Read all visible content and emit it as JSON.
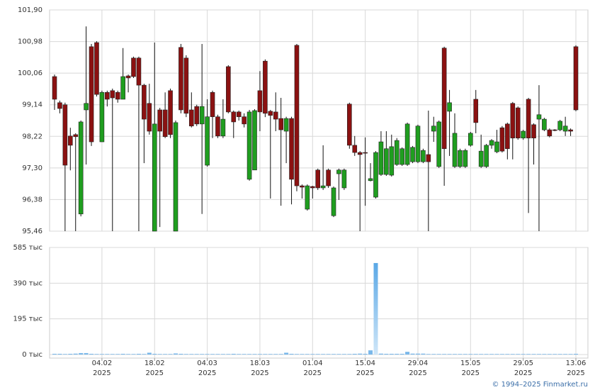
{
  "chart_data": {
    "type": "candlestick",
    "x": [
      "2025-01-22",
      "2025-01-23",
      "2025-01-24",
      "2025-01-27",
      "2025-01-28",
      "2025-01-29",
      "2025-01-30",
      "2025-01-31",
      "2025-02-03",
      "2025-02-04",
      "2025-02-05",
      "2025-02-06",
      "2025-02-07",
      "2025-02-10",
      "2025-02-11",
      "2025-02-12",
      "2025-02-13",
      "2025-02-14",
      "2025-02-17",
      "2025-02-18",
      "2025-02-19",
      "2025-02-20",
      "2025-02-21",
      "2025-02-24",
      "2025-02-25",
      "2025-02-26",
      "2025-02-27",
      "2025-02-28",
      "2025-03-03",
      "2025-03-04",
      "2025-03-05",
      "2025-03-06",
      "2025-03-07",
      "2025-03-10",
      "2025-03-11",
      "2025-03-12",
      "2025-03-13",
      "2025-03-14",
      "2025-03-17",
      "2025-03-18",
      "2025-03-19",
      "2025-03-20",
      "2025-03-21",
      "2025-03-24",
      "2025-03-25",
      "2025-03-26",
      "2025-03-27",
      "2025-03-28",
      "2025-03-31",
      "2025-04-01",
      "2025-04-02",
      "2025-04-03",
      "2025-04-04",
      "2025-04-07",
      "2025-04-08",
      "2025-04-09",
      "2025-04-10",
      "2025-04-11",
      "2025-04-14",
      "2025-04-15",
      "2025-04-16",
      "2025-04-17",
      "2025-04-18",
      "2025-04-21",
      "2025-04-22",
      "2025-04-23",
      "2025-04-24",
      "2025-04-25",
      "2025-04-28",
      "2025-04-29",
      "2025-04-30",
      "2025-05-05",
      "2025-05-06",
      "2025-05-07",
      "2025-05-08",
      "2025-05-09",
      "2025-05-12",
      "2025-05-13",
      "2025-05-14",
      "2025-05-15",
      "2025-05-16",
      "2025-05-19",
      "2025-05-20",
      "2025-05-21",
      "2025-05-22",
      "2025-05-23",
      "2025-05-26",
      "2025-05-27",
      "2025-05-28",
      "2025-05-29",
      "2025-05-30",
      "2025-06-02",
      "2025-06-03",
      "2025-06-04",
      "2025-06-05",
      "2025-06-06",
      "2025-06-09",
      "2025-06-10",
      "2025-06-11",
      "2025-06-13"
    ],
    "open": [
      99.96,
      99.2,
      99.14,
      98.23,
      98.27,
      95.96,
      98.99,
      100.83,
      100.95,
      98.06,
      99.5,
      99.55,
      99.5,
      99.3,
      99.98,
      100.5,
      100.5,
      99.71,
      99.18,
      95.46,
      98.99,
      98.99,
      99.55,
      95.46,
      100.81,
      100.5,
      98.99,
      99.09,
      98.58,
      97.38,
      99.5,
      98.79,
      98.23,
      100.25,
      98.93,
      98.93,
      98.79,
      96.97,
      97.24,
      99.55,
      100.41,
      98.95,
      98.93,
      98.74,
      98.37,
      98.74,
      100.87,
      96.78,
      96.1,
      96.76,
      97.24,
      96.72,
      97.24,
      95.91,
      97.13,
      96.72,
      99.16,
      97.96,
      97.75,
      97.75,
      96.93,
      96.45,
      97.11,
      97.11,
      97.09,
      97.4,
      97.4,
      97.4,
      97.48,
      97.48,
      97.48,
      97.69,
      98.37,
      97.34,
      100.79,
      98.95,
      97.34,
      97.34,
      97.34,
      97.96,
      99.3,
      97.34,
      97.34,
      97.96,
      97.77,
      98.47,
      98.58,
      99.18,
      99.05,
      98.17,
      99.3,
      98.56,
      98.72,
      98.41,
      98.41,
      98.41,
      98.41,
      98.37,
      98.41,
      100.83
    ],
    "high": [
      100.02,
      99.26,
      99.2,
      98.47,
      98.31,
      98.68,
      101.42,
      100.91,
      100.99,
      99.55,
      99.55,
      99.61,
      99.55,
      100.79,
      100.02,
      100.54,
      100.54,
      99.75,
      99.75,
      100.95,
      99.05,
      99.5,
      99.61,
      98.68,
      100.91,
      100.58,
      99.5,
      99.14,
      100.91,
      99.3,
      99.55,
      98.85,
      99.3,
      100.29,
      98.97,
      98.97,
      98.89,
      98.99,
      99.01,
      100.12,
      100.46,
      98.99,
      99.5,
      99.34,
      98.79,
      98.79,
      100.91,
      96.82,
      96.82,
      96.78,
      97.28,
      97.96,
      97.28,
      96.76,
      97.28,
      97.28,
      99.2,
      98.23,
      97.79,
      98.19,
      97.44,
      97.79,
      98.37,
      98.37,
      98.27,
      98.17,
      97.9,
      98.62,
      97.94,
      98.56,
      97.86,
      98.97,
      98.79,
      98.68,
      100.83,
      99.57,
      98.89,
      97.86,
      97.86,
      98.35,
      99.57,
      98.27,
      98.0,
      98.14,
      98.41,
      98.52,
      98.62,
      99.22,
      99.09,
      98.41,
      99.34,
      98.6,
      99.71,
      98.76,
      98.45,
      98.43,
      98.7,
      98.79,
      98.45,
      100.87
    ],
    "low": [
      98.99,
      98.89,
      95.46,
      97.23,
      95.46,
      95.89,
      97.4,
      97.94,
      99.38,
      98.06,
      99.09,
      95.46,
      99.2,
      99.3,
      99.5,
      99.92,
      95.46,
      97.44,
      98.27,
      95.46,
      95.58,
      98.17,
      98.17,
      95.46,
      98.89,
      98.78,
      98.48,
      98.52,
      95.96,
      97.34,
      98.17,
      98.17,
      98.17,
      98.89,
      98.17,
      98.68,
      98.48,
      96.93,
      97.24,
      98.37,
      98.78,
      96.41,
      98.37,
      96.2,
      97.44,
      96.24,
      96.62,
      96.41,
      96.06,
      96.41,
      96.66,
      96.66,
      96.72,
      95.87,
      96.37,
      96.66,
      97.86,
      97.65,
      95.46,
      96.2,
      96.91,
      96.41,
      97.07,
      97.07,
      97.05,
      97.36,
      97.36,
      97.36,
      97.44,
      97.44,
      97.44,
      95.46,
      98.06,
      97.3,
      96.78,
      97.65,
      97.3,
      97.3,
      97.3,
      97.92,
      98.31,
      97.3,
      97.3,
      97.86,
      97.73,
      97.75,
      97.55,
      97.55,
      98.12,
      98.12,
      95.99,
      97.4,
      95.46,
      98.37,
      98.19,
      98.37,
      98.37,
      98.23,
      98.23,
      98.95
    ],
    "close": [
      99.3,
      99.03,
      97.38,
      97.96,
      98.21,
      98.64,
      99.18,
      98.06,
      99.44,
      99.5,
      99.3,
      99.34,
      99.3,
      99.96,
      99.92,
      99.96,
      99.71,
      98.72,
      98.37,
      98.58,
      98.37,
      98.21,
      98.27,
      98.62,
      98.99,
      98.89,
      98.52,
      98.58,
      99.09,
      98.79,
      98.79,
      98.23,
      98.72,
      98.93,
      98.64,
      98.79,
      98.58,
      98.93,
      98.97,
      98.93,
      98.89,
      98.83,
      98.72,
      98.41,
      98.74,
      96.97,
      96.78,
      96.74,
      96.78,
      96.72,
      96.72,
      96.78,
      96.78,
      96.72,
      97.24,
      97.24,
      97.96,
      97.75,
      97.69,
      97.73,
      96.99,
      97.75,
      98.06,
      97.86,
      97.92,
      98.1,
      97.86,
      98.58,
      97.9,
      98.52,
      97.81,
      97.48,
      98.52,
      98.64,
      97.86,
      99.2,
      98.31,
      97.81,
      97.81,
      98.31,
      98.62,
      97.79,
      97.96,
      98.1,
      98.06,
      97.79,
      97.86,
      98.17,
      98.17,
      98.37,
      98.17,
      98.17,
      98.85,
      98.72,
      98.23,
      98.39,
      98.66,
      98.52,
      98.37,
      98.99
    ],
    "volume": [
      4,
      4,
      3,
      4,
      5,
      8,
      8,
      4,
      3,
      3,
      3,
      3,
      3,
      4,
      3,
      3,
      4,
      3,
      10,
      4,
      3,
      3,
      3,
      6,
      4,
      3,
      3,
      3,
      3,
      3,
      3,
      3,
      3,
      3,
      4,
      3,
      3,
      3,
      3,
      3,
      3,
      3,
      3,
      3,
      10,
      4,
      3,
      3,
      3,
      3,
      3,
      3,
      3,
      3,
      3,
      3,
      3,
      4,
      5,
      4,
      23,
      500,
      5,
      4,
      4,
      4,
      4,
      15,
      5,
      5,
      5,
      3,
      3,
      3,
      3,
      3,
      3,
      3,
      3,
      3,
      3,
      3,
      3,
      3,
      3,
      3,
      3,
      3,
      3,
      3,
      3,
      3,
      3,
      3,
      3,
      3,
      3,
      3,
      3,
      4
    ],
    "up_color": "#1f9e1f",
    "down_color": "#8b1111",
    "volume_color": "#7ab8ea",
    "ylim": [
      95.46,
      101.9
    ],
    "yticks": [
      {
        "value": 95.46,
        "label": "95,46"
      },
      {
        "value": 96.38,
        "label": "96,38"
      },
      {
        "value": 97.3,
        "label": "97,30"
      },
      {
        "value": 98.22,
        "label": "98,22"
      },
      {
        "value": 99.14,
        "label": "99,14"
      },
      {
        "value": 100.06,
        "label": "100,06"
      },
      {
        "value": 100.98,
        "label": "100,98"
      },
      {
        "value": 101.9,
        "label": "101,90"
      }
    ],
    "volume_ylim": [
      0,
      585
    ],
    "volume_yticks": [
      {
        "value": 0,
        "label": "0 тыс"
      },
      {
        "value": 195,
        "label": "195 тыс"
      },
      {
        "value": 390,
        "label": "390 тыс"
      },
      {
        "value": 585,
        "label": "585 тыс"
      }
    ],
    "xticks": [
      {
        "value": "2025-02-04",
        "label": "04.02 2025"
      },
      {
        "value": "2025-02-18",
        "label": "18.02 2025"
      },
      {
        "value": "2025-03-04",
        "label": "04.03 2025"
      },
      {
        "value": "2025-03-18",
        "label": "18.03 2025"
      },
      {
        "value": "2025-04-01",
        "label": "01.04 2025"
      },
      {
        "value": "2025-04-15",
        "label": "15.04 2025"
      },
      {
        "value": "2025-04-29",
        "label": "29.04 2025"
      },
      {
        "value": "2025-05-15",
        "label": "15.05 2025"
      },
      {
        "value": "2025-05-29",
        "label": "29.05 2025"
      },
      {
        "value": "2025-06-13",
        "label": "13.06 2025"
      }
    ],
    "grid": true
  },
  "footer": "© 1994–2025 Finmarket.ru"
}
